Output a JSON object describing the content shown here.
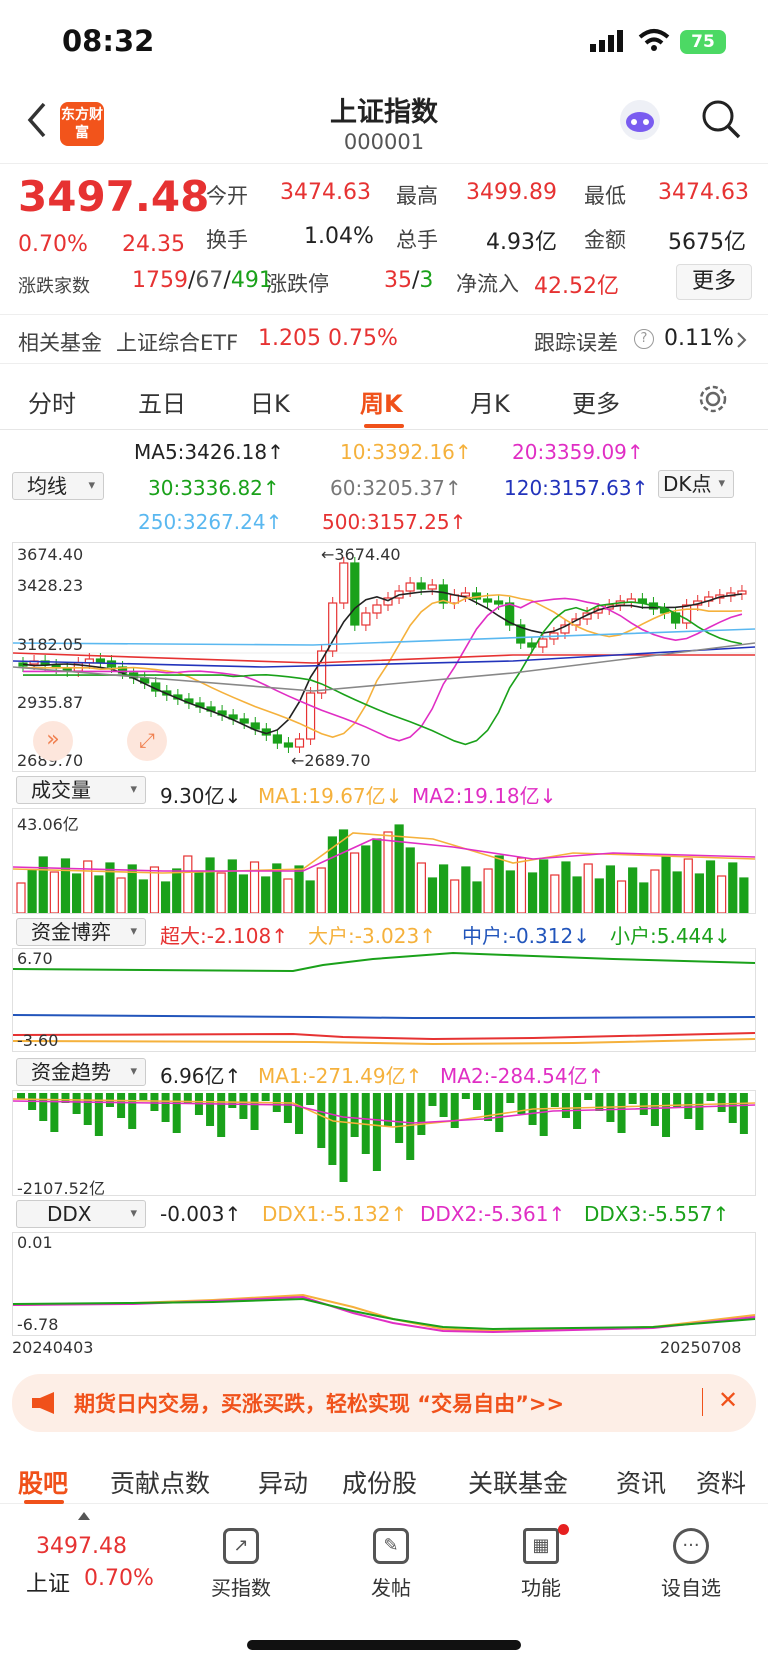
{
  "status_bar": {
    "time": "08:32",
    "battery": "75"
  },
  "header": {
    "title": "上证指数",
    "code": "000001",
    "logo": "东方财富"
  },
  "quote": {
    "price": "3497.48",
    "pct": "0.70%",
    "change": "24.35",
    "open_label": "今开",
    "open": "3474.63",
    "high_label": "最高",
    "high": "3499.89",
    "low_label": "最低",
    "low": "3474.63",
    "turnover_label": "换手",
    "turnover": "1.04%",
    "volume_label": "总手",
    "volume": "4.93亿",
    "amount_label": "金额",
    "amount": "5675亿",
    "breadth_label": "涨跌家数",
    "up": "1759",
    "flat": "67",
    "down": "491",
    "limit_label": "涨跌停",
    "limit_up": "35",
    "limit_down": "3",
    "netflow_label": "净流入",
    "netflow": "42.52亿",
    "more": "更多"
  },
  "fund": {
    "label": "相关基金",
    "name": "上证综合ETF",
    "price": "1.205",
    "pct": "0.75%",
    "err_label": "跟踪误差",
    "err_icon": "?",
    "err": "0.11%"
  },
  "tabs": [
    "分时",
    "五日",
    "日K",
    "周K",
    "月K",
    "更多"
  ],
  "ma": {
    "button": "均线",
    "dk": "DK点",
    "ma5": "MA5:3426.18↑",
    "ma10": "10:3392.16↑",
    "ma20": "20:3359.09↑",
    "ma30": "30:3336.82↑",
    "ma60": "60:3205.37↑",
    "ma120": "120:3157.63↑",
    "ma250": "250:3267.24↑",
    "ma500": "500:3157.25↑"
  },
  "kline": {
    "y_labels": [
      "3674.40",
      "3428.23",
      "3182.05",
      "2935.87",
      "2689.70"
    ],
    "hi_label": "←3674.40",
    "lo_label": "←2689.70"
  },
  "volume": {
    "button": "成交量",
    "val": "9.30亿↓",
    "ma1": "MA1:19.67亿↓",
    "ma2": "MA2:19.18亿↓",
    "max": "43.06亿"
  },
  "capital": {
    "button": "资金博弈",
    "super": "超大:-2.108↑",
    "big": "大户:-3.023↑",
    "mid": "中户:-0.312↓",
    "small": "小户:5.444↓",
    "top": "6.70",
    "bottom": "-3.60"
  },
  "trend": {
    "button": "资金趋势",
    "val": "6.96亿↑",
    "ma1": "MA1:-271.49亿↑",
    "ma2": "MA2:-284.54亿↑",
    "bottom": "-2107.52亿"
  },
  "ddx": {
    "button": "DDX",
    "val": "-0.003↑",
    "ddx1": "DDX1:-5.132↑",
    "ddx2": "DDX2:-5.361↑",
    "ddx3": "DDX3:-5.557↑",
    "top": "0.01",
    "bottom": "-6.78",
    "start": "20240403",
    "end": "20250708"
  },
  "ad": {
    "text": "期货日内交易，买涨买跌，轻松实现 “交易自由”>>"
  },
  "bottom_tabs": [
    "股吧",
    "贡献点数",
    "异动",
    "成份股",
    "关联基金",
    "资讯",
    "资料"
  ],
  "nav": {
    "price": "3497.48",
    "name": "上证",
    "pct": "0.70%",
    "buy": "买指数",
    "post": "发帖",
    "func": "功能",
    "fav": "设自选"
  }
}
